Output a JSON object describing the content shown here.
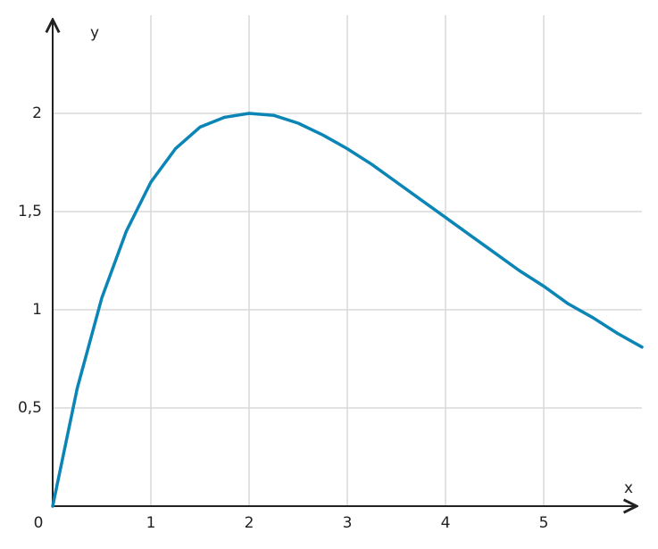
{
  "chart_data": {
    "type": "line",
    "x_label": "x",
    "y_label": "y",
    "x": [
      0,
      0.25,
      0.5,
      0.75,
      1,
      1.25,
      1.5,
      1.75,
      2,
      2.25,
      2.5,
      2.75,
      3,
      3.25,
      3.5,
      3.75,
      4,
      4.25,
      4.5,
      4.75,
      5,
      5.25,
      5.5,
      5.75,
      6
    ],
    "values": [
      0,
      0.6,
      1.06,
      1.4,
      1.65,
      1.82,
      1.93,
      1.98,
      2,
      1.99,
      1.95,
      1.89,
      1.82,
      1.74,
      1.65,
      1.56,
      1.47,
      1.38,
      1.29,
      1.2,
      1.12,
      1.03,
      0.96,
      0.88,
      0.81
    ],
    "color": "#0a85b5",
    "xlim": [
      0,
      6
    ],
    "ylim": [
      0,
      2.5
    ],
    "xticks": [
      0,
      1,
      2,
      3,
      4,
      5
    ],
    "yticks": [
      {
        "value": 0.5,
        "label": "0,5"
      },
      1,
      {
        "value": 1.5,
        "label": "1,5"
      },
      2
    ],
    "grid": true
  }
}
